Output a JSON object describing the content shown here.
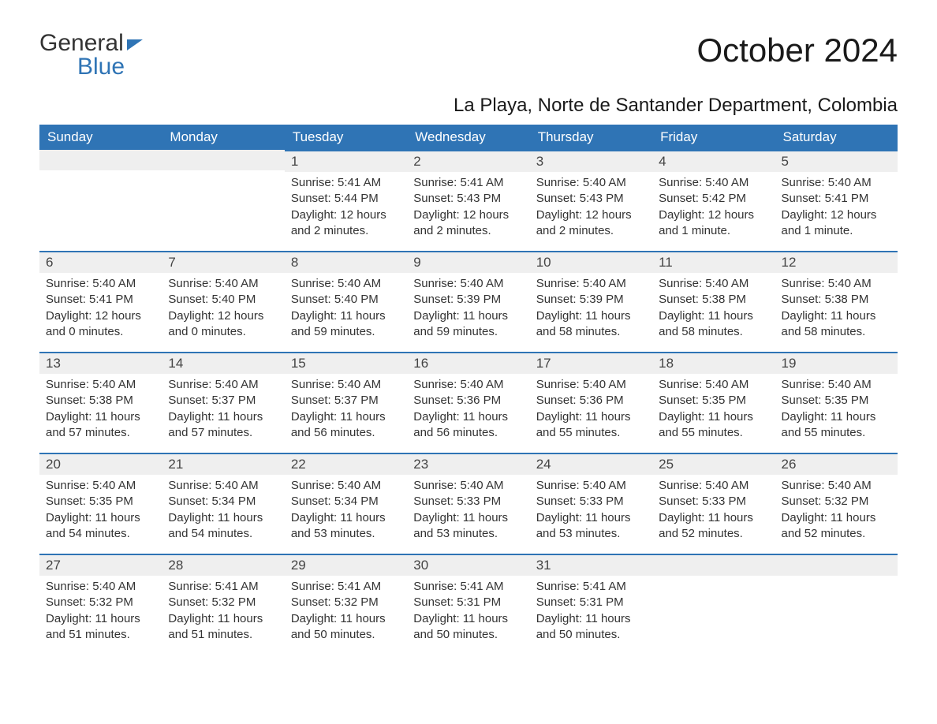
{
  "brand": {
    "line1": "General",
    "line2": "Blue"
  },
  "title": "October 2024",
  "subtitle": "La Playa, Norte de Santander Department, Colombia",
  "colors": {
    "accent": "#2f74b5",
    "header_bg": "#2f74b5",
    "header_text": "#ffffff",
    "daynum_bg": "#efefef",
    "text": "#333333",
    "page_bg": "#ffffff"
  },
  "weekday_headers": [
    "Sunday",
    "Monday",
    "Tuesday",
    "Wednesday",
    "Thursday",
    "Friday",
    "Saturday"
  ],
  "weeks": [
    [
      null,
      null,
      {
        "n": "1",
        "sunrise": "Sunrise: 5:41 AM",
        "sunset": "Sunset: 5:44 PM",
        "daylight": "Daylight: 12 hours and 2 minutes."
      },
      {
        "n": "2",
        "sunrise": "Sunrise: 5:41 AM",
        "sunset": "Sunset: 5:43 PM",
        "daylight": "Daylight: 12 hours and 2 minutes."
      },
      {
        "n": "3",
        "sunrise": "Sunrise: 5:40 AM",
        "sunset": "Sunset: 5:43 PM",
        "daylight": "Daylight: 12 hours and 2 minutes."
      },
      {
        "n": "4",
        "sunrise": "Sunrise: 5:40 AM",
        "sunset": "Sunset: 5:42 PM",
        "daylight": "Daylight: 12 hours and 1 minute."
      },
      {
        "n": "5",
        "sunrise": "Sunrise: 5:40 AM",
        "sunset": "Sunset: 5:41 PM",
        "daylight": "Daylight: 12 hours and 1 minute."
      }
    ],
    [
      {
        "n": "6",
        "sunrise": "Sunrise: 5:40 AM",
        "sunset": "Sunset: 5:41 PM",
        "daylight": "Daylight: 12 hours and 0 minutes."
      },
      {
        "n": "7",
        "sunrise": "Sunrise: 5:40 AM",
        "sunset": "Sunset: 5:40 PM",
        "daylight": "Daylight: 12 hours and 0 minutes."
      },
      {
        "n": "8",
        "sunrise": "Sunrise: 5:40 AM",
        "sunset": "Sunset: 5:40 PM",
        "daylight": "Daylight: 11 hours and 59 minutes."
      },
      {
        "n": "9",
        "sunrise": "Sunrise: 5:40 AM",
        "sunset": "Sunset: 5:39 PM",
        "daylight": "Daylight: 11 hours and 59 minutes."
      },
      {
        "n": "10",
        "sunrise": "Sunrise: 5:40 AM",
        "sunset": "Sunset: 5:39 PM",
        "daylight": "Daylight: 11 hours and 58 minutes."
      },
      {
        "n": "11",
        "sunrise": "Sunrise: 5:40 AM",
        "sunset": "Sunset: 5:38 PM",
        "daylight": "Daylight: 11 hours and 58 minutes."
      },
      {
        "n": "12",
        "sunrise": "Sunrise: 5:40 AM",
        "sunset": "Sunset: 5:38 PM",
        "daylight": "Daylight: 11 hours and 58 minutes."
      }
    ],
    [
      {
        "n": "13",
        "sunrise": "Sunrise: 5:40 AM",
        "sunset": "Sunset: 5:38 PM",
        "daylight": "Daylight: 11 hours and 57 minutes."
      },
      {
        "n": "14",
        "sunrise": "Sunrise: 5:40 AM",
        "sunset": "Sunset: 5:37 PM",
        "daylight": "Daylight: 11 hours and 57 minutes."
      },
      {
        "n": "15",
        "sunrise": "Sunrise: 5:40 AM",
        "sunset": "Sunset: 5:37 PM",
        "daylight": "Daylight: 11 hours and 56 minutes."
      },
      {
        "n": "16",
        "sunrise": "Sunrise: 5:40 AM",
        "sunset": "Sunset: 5:36 PM",
        "daylight": "Daylight: 11 hours and 56 minutes."
      },
      {
        "n": "17",
        "sunrise": "Sunrise: 5:40 AM",
        "sunset": "Sunset: 5:36 PM",
        "daylight": "Daylight: 11 hours and 55 minutes."
      },
      {
        "n": "18",
        "sunrise": "Sunrise: 5:40 AM",
        "sunset": "Sunset: 5:35 PM",
        "daylight": "Daylight: 11 hours and 55 minutes."
      },
      {
        "n": "19",
        "sunrise": "Sunrise: 5:40 AM",
        "sunset": "Sunset: 5:35 PM",
        "daylight": "Daylight: 11 hours and 55 minutes."
      }
    ],
    [
      {
        "n": "20",
        "sunrise": "Sunrise: 5:40 AM",
        "sunset": "Sunset: 5:35 PM",
        "daylight": "Daylight: 11 hours and 54 minutes."
      },
      {
        "n": "21",
        "sunrise": "Sunrise: 5:40 AM",
        "sunset": "Sunset: 5:34 PM",
        "daylight": "Daylight: 11 hours and 54 minutes."
      },
      {
        "n": "22",
        "sunrise": "Sunrise: 5:40 AM",
        "sunset": "Sunset: 5:34 PM",
        "daylight": "Daylight: 11 hours and 53 minutes."
      },
      {
        "n": "23",
        "sunrise": "Sunrise: 5:40 AM",
        "sunset": "Sunset: 5:33 PM",
        "daylight": "Daylight: 11 hours and 53 minutes."
      },
      {
        "n": "24",
        "sunrise": "Sunrise: 5:40 AM",
        "sunset": "Sunset: 5:33 PM",
        "daylight": "Daylight: 11 hours and 53 minutes."
      },
      {
        "n": "25",
        "sunrise": "Sunrise: 5:40 AM",
        "sunset": "Sunset: 5:33 PM",
        "daylight": "Daylight: 11 hours and 52 minutes."
      },
      {
        "n": "26",
        "sunrise": "Sunrise: 5:40 AM",
        "sunset": "Sunset: 5:32 PM",
        "daylight": "Daylight: 11 hours and 52 minutes."
      }
    ],
    [
      {
        "n": "27",
        "sunrise": "Sunrise: 5:40 AM",
        "sunset": "Sunset: 5:32 PM",
        "daylight": "Daylight: 11 hours and 51 minutes."
      },
      {
        "n": "28",
        "sunrise": "Sunrise: 5:41 AM",
        "sunset": "Sunset: 5:32 PM",
        "daylight": "Daylight: 11 hours and 51 minutes."
      },
      {
        "n": "29",
        "sunrise": "Sunrise: 5:41 AM",
        "sunset": "Sunset: 5:32 PM",
        "daylight": "Daylight: 11 hours and 50 minutes."
      },
      {
        "n": "30",
        "sunrise": "Sunrise: 5:41 AM",
        "sunset": "Sunset: 5:31 PM",
        "daylight": "Daylight: 11 hours and 50 minutes."
      },
      {
        "n": "31",
        "sunrise": "Sunrise: 5:41 AM",
        "sunset": "Sunset: 5:31 PM",
        "daylight": "Daylight: 11 hours and 50 minutes."
      },
      null,
      null
    ]
  ]
}
